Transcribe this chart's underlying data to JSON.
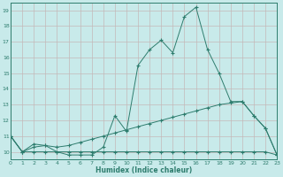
{
  "line1_x": [
    0,
    1,
    2,
    3,
    4,
    5,
    6,
    7,
    8,
    9,
    10,
    11,
    12,
    13,
    14,
    15,
    16,
    17,
    18,
    19,
    20,
    21,
    22,
    23
  ],
  "line1_y": [
    11,
    10.0,
    10.5,
    10.4,
    10.0,
    9.8,
    9.8,
    9.8,
    10.3,
    12.3,
    11.3,
    15.5,
    16.5,
    17.1,
    16.3,
    18.6,
    19.2,
    16.5,
    15.0,
    13.2,
    13.2,
    12.3,
    11.5,
    9.8
  ],
  "line2_x": [
    0,
    1,
    2,
    3,
    4,
    5,
    6,
    7,
    8,
    9,
    10,
    11,
    12,
    13,
    14,
    15,
    16,
    17,
    18,
    19,
    20,
    21,
    22,
    23
  ],
  "line2_y": [
    11.0,
    10.0,
    10.3,
    10.4,
    10.3,
    10.4,
    10.6,
    10.8,
    11.0,
    11.2,
    11.4,
    11.6,
    11.8,
    12.0,
    12.2,
    12.4,
    12.6,
    12.8,
    13.0,
    13.1,
    13.2,
    12.3,
    11.5,
    9.8
  ],
  "line3_x": [
    0,
    1,
    2,
    3,
    4,
    5,
    6,
    7,
    8,
    9,
    10,
    11,
    12,
    13,
    14,
    15,
    16,
    17,
    18,
    19,
    20,
    21,
    22,
    23
  ],
  "line3_y": [
    11.0,
    10.0,
    10.0,
    10.0,
    10.0,
    10.0,
    10.0,
    10.0,
    10.0,
    10.0,
    10.0,
    10.0,
    10.0,
    10.0,
    10.0,
    10.0,
    10.0,
    10.0,
    10.0,
    10.0,
    10.0,
    10.0,
    10.0,
    9.8
  ],
  "line_color": "#2e7d6e",
  "bg_color": "#c8eaea",
  "grid_color": "#b0d4d4",
  "xlabel": "Humidex (Indice chaleur)",
  "xlim": [
    0,
    23
  ],
  "ylim": [
    9.5,
    19.5
  ],
  "xticks": [
    0,
    1,
    2,
    3,
    4,
    5,
    6,
    7,
    8,
    9,
    10,
    11,
    12,
    13,
    14,
    15,
    16,
    17,
    18,
    19,
    20,
    21,
    22,
    23
  ],
  "yticks": [
    10,
    11,
    12,
    13,
    14,
    15,
    16,
    17,
    18,
    19
  ]
}
